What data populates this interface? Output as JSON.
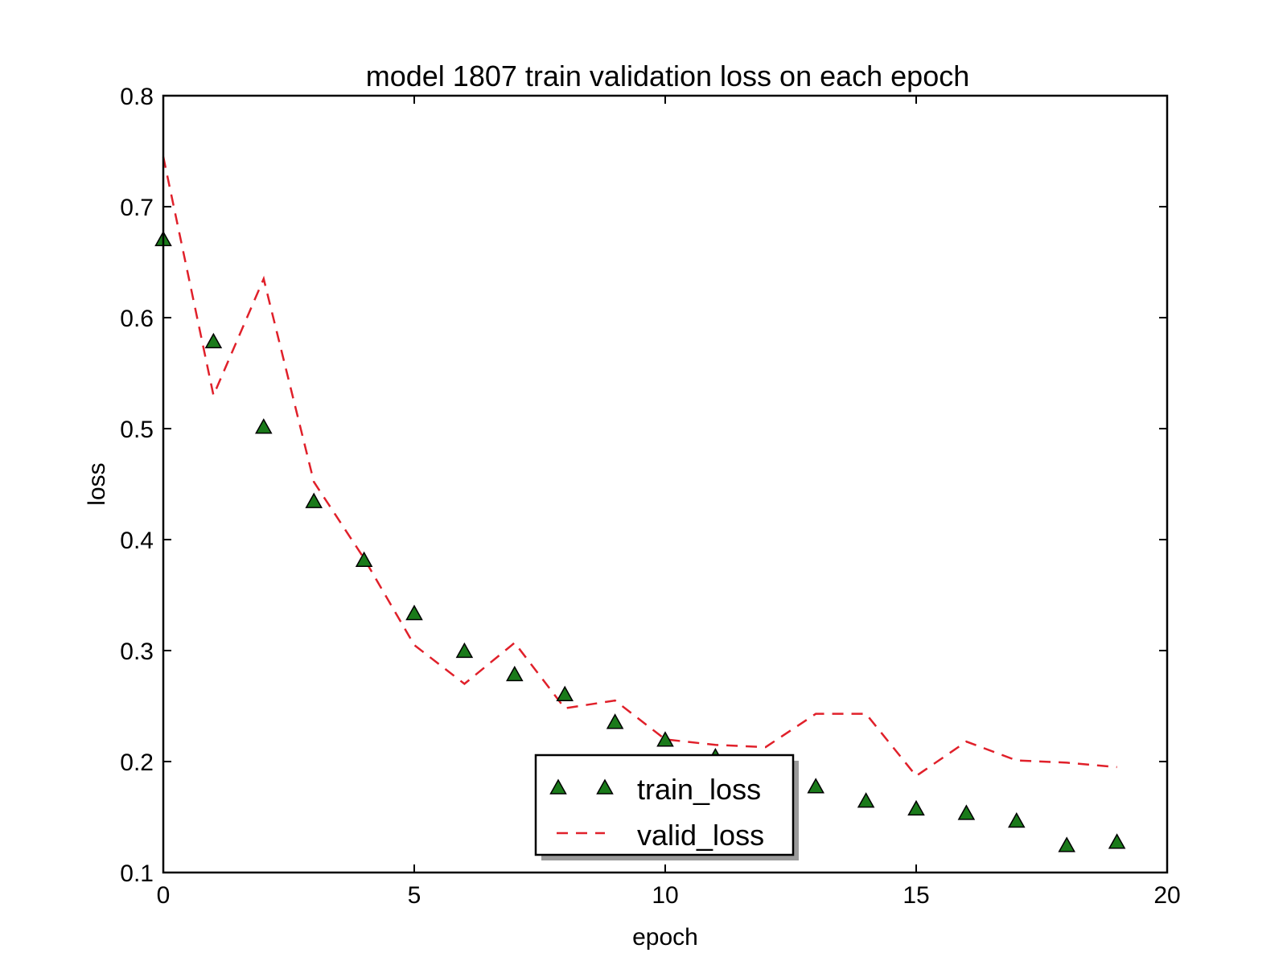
{
  "chart_data": {
    "type": "line",
    "title": "model 1807 train validation loss on each epoch",
    "xlabel": "epoch",
    "ylabel": "loss",
    "xlim": [
      0,
      20
    ],
    "ylim": [
      0.1,
      0.8
    ],
    "xticks": [
      0,
      5,
      10,
      15,
      20
    ],
    "yticks": [
      0.1,
      0.2,
      0.3,
      0.4,
      0.5,
      0.6,
      0.7,
      0.8
    ],
    "xtick_labels": [
      "0",
      "5",
      "10",
      "15",
      "20"
    ],
    "ytick_labels": [
      "0.1",
      "0.2",
      "0.3",
      "0.4",
      "0.5",
      "0.6",
      "0.7",
      "0.8"
    ],
    "grid": false,
    "legend_position": "bottom-center",
    "x": [
      0,
      1,
      2,
      3,
      4,
      5,
      6,
      7,
      8,
      9,
      10,
      11,
      12,
      13,
      14,
      15,
      16,
      17,
      18,
      19
    ],
    "series": [
      {
        "name": "train_loss",
        "style": "triangle-markers",
        "color": "#1a7a1a",
        "values": [
          0.67,
          0.578,
          0.501,
          0.434,
          0.381,
          0.333,
          0.299,
          0.278,
          0.26,
          0.235,
          0.219,
          0.204,
          0.19,
          0.177,
          0.164,
          0.157,
          0.153,
          0.146,
          0.124,
          0.127
        ]
      },
      {
        "name": "valid_loss",
        "style": "dashed-line",
        "color": "#e0202a",
        "values": [
          0.745,
          0.53,
          0.635,
          0.452,
          0.383,
          0.305,
          0.27,
          0.307,
          0.248,
          0.255,
          0.22,
          0.215,
          0.213,
          0.243,
          0.243,
          0.187,
          0.218,
          0.201,
          0.199,
          0.195
        ]
      }
    ]
  }
}
